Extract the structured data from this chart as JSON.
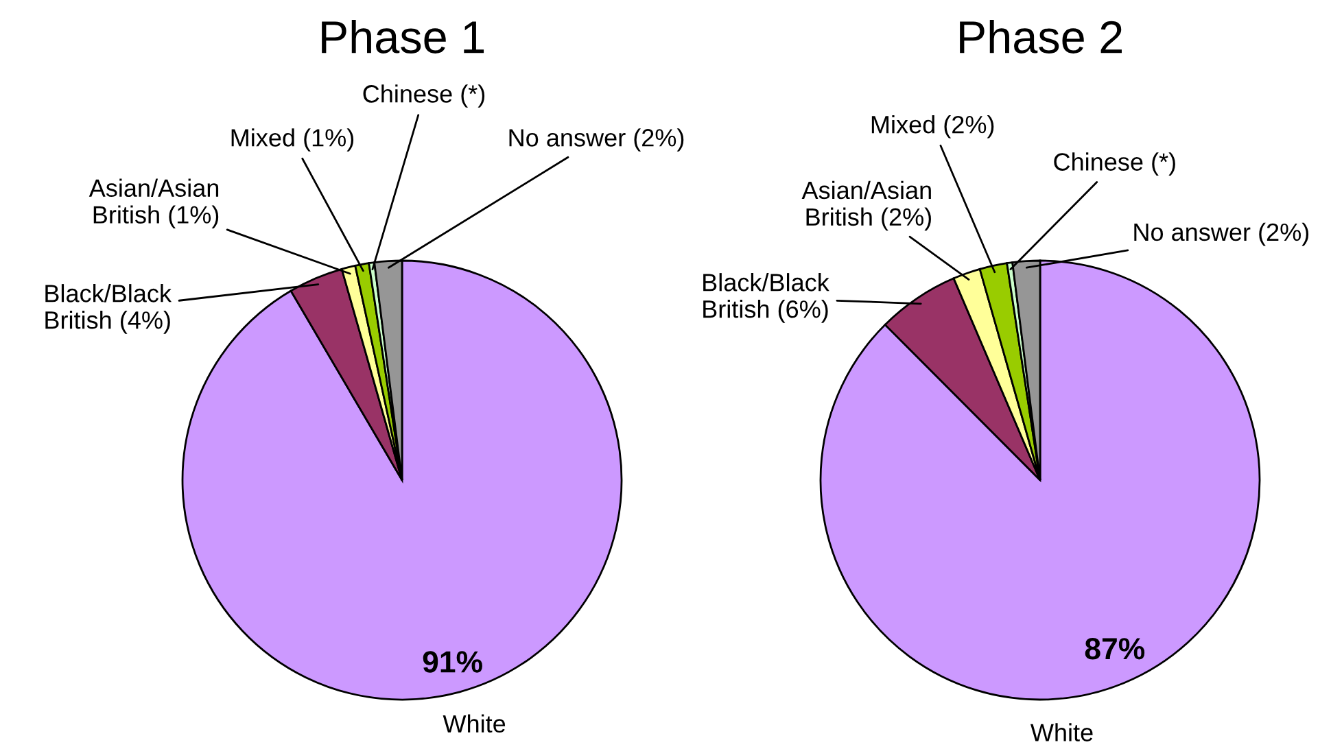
{
  "chart_data": [
    {
      "type": "pie",
      "title": "Phase 1",
      "categories": [
        "White",
        "Black/Black\nBritish (4%)",
        "Asian/Asian\nBritish (1%)",
        "Mixed (1%)",
        "Chinese (*)",
        "No answer (2%)"
      ],
      "values": [
        91,
        4,
        1,
        1,
        0.4,
        2
      ],
      "value_labels": [
        "91%",
        null,
        null,
        null,
        null,
        null
      ],
      "colors": [
        "#cc99ff",
        "#993366",
        "#ffff99",
        "#99cc00",
        "#ccffcc",
        "#969696"
      ]
    },
    {
      "type": "pie",
      "title": "Phase 2",
      "categories": [
        "White",
        "Black/Black\nBritish (6%)",
        "Asian/Asian\nBritish (2%)",
        "Mixed (2%)",
        "Chinese (*)",
        "No answer (2%)"
      ],
      "values": [
        87,
        6,
        2,
        2,
        0.4,
        2
      ],
      "value_labels": [
        "87%",
        null,
        null,
        null,
        null,
        null
      ],
      "colors": [
        "#cc99ff",
        "#993366",
        "#ffff99",
        "#99cc00",
        "#ccffcc",
        "#969696"
      ]
    }
  ]
}
